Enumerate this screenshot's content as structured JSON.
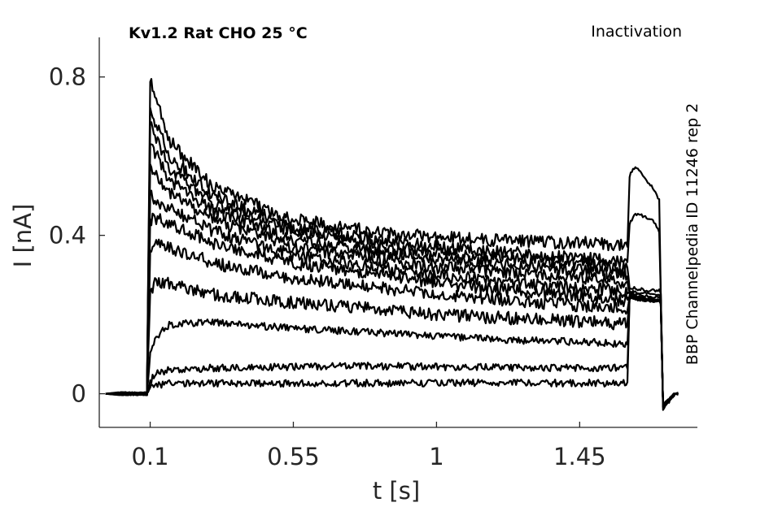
{
  "chart_data": {
    "type": "line",
    "title": "Kv1.2  Rat  CHO  25 °C",
    "protocol_label": "Inactivation",
    "source_label": "BBP Channelpedia ID 11246 rep 2",
    "xlabel": "t [s]",
    "ylabel": "I [nA]",
    "xlim": [
      -0.06,
      1.82
    ],
    "ylim": [
      -0.085,
      0.9
    ],
    "x_ticks": [
      0.1,
      0.55,
      1,
      1.45
    ],
    "x_tick_labels": [
      "0.1",
      "0.55",
      "1",
      "1.45"
    ],
    "y_ticks": [
      0,
      0.4,
      0.8
    ],
    "y_tick_labels": [
      "0",
      "0.4",
      "0.8"
    ],
    "grid": false,
    "legend": "none",
    "line_color": "#000000",
    "series": [
      {
        "x": [
          0.0,
          0.09,
          0.1,
          0.115,
          0.16,
          0.3,
          0.55,
          0.8,
          1.0,
          1.25,
          1.5,
          1.6,
          1.607,
          1.625,
          1.68,
          1.7,
          1.705,
          1.712,
          1.75
        ],
        "y": [
          0.0,
          0.0,
          0.79,
          0.75,
          0.64,
          0.52,
          0.44,
          0.41,
          0.395,
          0.385,
          0.38,
          0.375,
          0.55,
          0.575,
          0.52,
          0.49,
          0.25,
          -0.04,
          0.0
        ]
      },
      {
        "x": [
          0.0,
          0.09,
          0.1,
          0.115,
          0.16,
          0.3,
          0.55,
          0.8,
          1.0,
          1.25,
          1.5,
          1.6,
          1.607,
          1.625,
          1.68,
          1.7,
          1.705,
          1.712,
          1.75
        ],
        "y": [
          0.0,
          0.0,
          0.72,
          0.69,
          0.6,
          0.5,
          0.42,
          0.39,
          0.37,
          0.355,
          0.34,
          0.33,
          0.43,
          0.455,
          0.44,
          0.41,
          0.25,
          -0.03,
          0.0
        ]
      },
      {
        "x": [
          0.0,
          0.09,
          0.1,
          0.115,
          0.16,
          0.3,
          0.55,
          0.8,
          1.0,
          1.25,
          1.5,
          1.6,
          1.607,
          1.625,
          1.68,
          1.7,
          1.705,
          1.712,
          1.75
        ],
        "y": [
          0.0,
          0.0,
          0.68,
          0.65,
          0.57,
          0.48,
          0.41,
          0.375,
          0.355,
          0.34,
          0.325,
          0.315,
          0.27,
          0.265,
          0.26,
          0.26,
          0.25,
          -0.03,
          0.0
        ]
      },
      {
        "x": [
          0.0,
          0.09,
          0.1,
          0.115,
          0.16,
          0.3,
          0.55,
          0.8,
          1.0,
          1.25,
          1.5,
          1.6,
          1.607,
          1.625,
          1.68,
          1.7,
          1.705,
          1.712,
          1.75
        ],
        "y": [
          0.0,
          0.0,
          0.63,
          0.61,
          0.54,
          0.46,
          0.39,
          0.36,
          0.34,
          0.325,
          0.31,
          0.3,
          0.26,
          0.255,
          0.25,
          0.25,
          0.24,
          -0.03,
          0.0
        ]
      },
      {
        "x": [
          0.0,
          0.09,
          0.1,
          0.115,
          0.16,
          0.3,
          0.55,
          0.8,
          1.0,
          1.25,
          1.5,
          1.6,
          1.607,
          1.625,
          1.68,
          1.7,
          1.705,
          1.712,
          1.75
        ],
        "y": [
          0.0,
          0.0,
          0.58,
          0.56,
          0.51,
          0.44,
          0.37,
          0.34,
          0.32,
          0.305,
          0.29,
          0.28,
          0.255,
          0.25,
          0.245,
          0.245,
          0.24,
          -0.03,
          0.0
        ]
      },
      {
        "x": [
          0.0,
          0.09,
          0.1,
          0.115,
          0.16,
          0.3,
          0.55,
          0.8,
          1.0,
          1.25,
          1.5,
          1.6,
          1.607,
          1.625,
          1.68,
          1.7,
          1.705,
          1.712,
          1.75
        ],
        "y": [
          0.0,
          0.0,
          0.5,
          0.49,
          0.47,
          0.41,
          0.35,
          0.32,
          0.3,
          0.28,
          0.265,
          0.255,
          0.25,
          0.245,
          0.24,
          0.24,
          0.235,
          -0.03,
          0.0
        ]
      },
      {
        "x": [
          0.0,
          0.09,
          0.1,
          0.115,
          0.16,
          0.3,
          0.55,
          0.8,
          1.0,
          1.25,
          1.5,
          1.6,
          1.607,
          1.625,
          1.68,
          1.7,
          1.705,
          1.712,
          1.75
        ],
        "y": [
          0.0,
          0.0,
          0.44,
          0.445,
          0.43,
          0.38,
          0.33,
          0.3,
          0.28,
          0.26,
          0.245,
          0.235,
          0.245,
          0.24,
          0.235,
          0.235,
          0.23,
          -0.03,
          0.0
        ]
      },
      {
        "x": [
          0.0,
          0.09,
          0.1,
          0.115,
          0.16,
          0.3,
          0.55,
          0.8,
          1.0,
          1.25,
          1.5,
          1.6,
          1.607,
          1.625,
          1.68,
          1.7,
          1.705,
          1.712,
          1.75
        ],
        "y": [
          0.0,
          0.0,
          0.36,
          0.375,
          0.37,
          0.33,
          0.29,
          0.27,
          0.25,
          0.235,
          0.22,
          0.21,
          0.245,
          0.24,
          0.235,
          0.235,
          0.23,
          -0.03,
          0.0
        ]
      },
      {
        "x": [
          0.0,
          0.09,
          0.1,
          0.115,
          0.16,
          0.3,
          0.55,
          0.8,
          1.0,
          1.25,
          1.5,
          1.6,
          1.607,
          1.625,
          1.68,
          1.7,
          1.705,
          1.712,
          1.75
        ],
        "y": [
          0.0,
          0.0,
          0.26,
          0.28,
          0.28,
          0.25,
          0.23,
          0.215,
          0.2,
          0.19,
          0.18,
          0.175,
          0.245,
          0.24,
          0.235,
          0.235,
          0.23,
          -0.03,
          0.0
        ]
      },
      {
        "x": [
          0.0,
          0.09,
          0.1,
          0.115,
          0.16,
          0.3,
          0.55,
          0.8,
          1.0,
          1.25,
          1.5,
          1.6,
          1.607,
          1.625,
          1.68,
          1.7,
          1.705,
          1.712,
          1.75
        ],
        "y": [
          0.0,
          0.0,
          0.1,
          0.14,
          0.175,
          0.18,
          0.165,
          0.155,
          0.145,
          0.135,
          0.13,
          0.125,
          0.245,
          0.24,
          0.235,
          0.235,
          0.23,
          -0.03,
          0.0
        ]
      },
      {
        "x": [
          0.0,
          0.09,
          0.1,
          0.115,
          0.16,
          0.3,
          0.55,
          0.8,
          1.0,
          1.25,
          1.5,
          1.6,
          1.607,
          1.625,
          1.68,
          1.7,
          1.705,
          1.712,
          1.75
        ],
        "y": [
          0.0,
          0.0,
          0.03,
          0.05,
          0.06,
          0.065,
          0.068,
          0.07,
          0.068,
          0.066,
          0.065,
          0.065,
          0.245,
          0.24,
          0.235,
          0.235,
          0.23,
          -0.03,
          0.0
        ]
      },
      {
        "x": [
          0.0,
          0.09,
          0.1,
          0.115,
          0.16,
          0.3,
          0.55,
          0.8,
          1.0,
          1.25,
          1.5,
          1.6,
          1.607,
          1.625,
          1.68,
          1.7,
          1.705,
          1.712,
          1.75
        ],
        "y": [
          0.0,
          0.0,
          0.015,
          0.022,
          0.025,
          0.026,
          0.027,
          0.027,
          0.027,
          0.027,
          0.027,
          0.027,
          0.245,
          0.24,
          0.235,
          0.235,
          0.23,
          -0.03,
          0.0
        ]
      }
    ]
  }
}
